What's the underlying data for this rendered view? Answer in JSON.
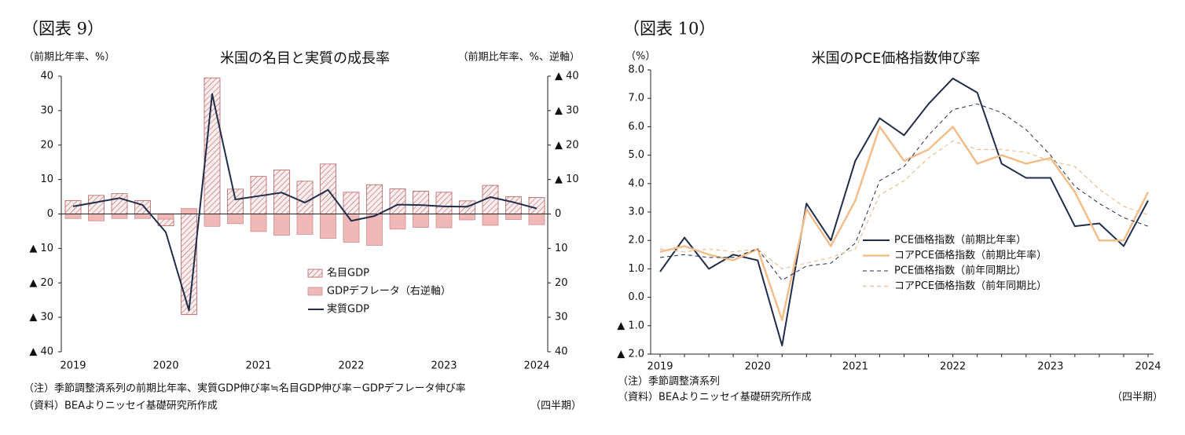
{
  "chart_data": [
    {
      "type": "combo",
      "label": "（図表 9）",
      "title": "米国の名目と実質の成長率",
      "ylabel": "（前期比年率、%）",
      "y2label": "（前期比年率、%、逆軸）",
      "categories": [
        "2019",
        null,
        null,
        null,
        "2020",
        null,
        null,
        null,
        "2021",
        null,
        null,
        null,
        "2022",
        null,
        null,
        null,
        "2023",
        null,
        null,
        null,
        "2024"
      ],
      "series": [
        {
          "name": "名目GDP",
          "type": "bar",
          "pattern": "hatch",
          "color": "#b5605e",
          "values": [
            3.9,
            5.4,
            5.9,
            3.9,
            -3.4,
            -29.2,
            39.5,
            7.2,
            10.9,
            12.8,
            9.5,
            14.5,
            6.3,
            8.5,
            7.3,
            6.6,
            6.3,
            3.8,
            8.3,
            5.0,
            4.8
          ]
        },
        {
          "name": "GDPデフレータ（右逆軸）",
          "type": "bar",
          "axis": "y2",
          "color": "#f0b9b8",
          "values": [
            1.3,
            2.0,
            1.3,
            1.3,
            1.5,
            -1.6,
            3.6,
            2.8,
            5.1,
            6.2,
            5.9,
            7.1,
            8.2,
            9.1,
            4.4,
            3.9,
            4.0,
            1.7,
            3.3,
            1.6,
            3.1
          ]
        },
        {
          "name": "実質GDP",
          "type": "line",
          "color": "#1f2d4a",
          "values": [
            2.2,
            3.4,
            4.6,
            2.6,
            -5.3,
            -28.0,
            34.8,
            4.2,
            5.2,
            6.2,
            3.3,
            7.0,
            -2.0,
            -0.6,
            2.7,
            2.6,
            2.2,
            2.1,
            4.9,
            3.4,
            1.6
          ]
        }
      ],
      "ylim": [
        -40,
        40
      ],
      "yticks": [
        40,
        30,
        20,
        10,
        0,
        {
          "value": -10,
          "label": "▲ 10"
        },
        {
          "value": -20,
          "label": "▲ 20"
        },
        {
          "value": -30,
          "label": "▲ 30"
        },
        {
          "value": -40,
          "label": "▲ 40"
        }
      ],
      "y2lim": [
        40,
        -40
      ],
      "y2ticks": [
        {
          "value": -40,
          "label": "▲ 40"
        },
        {
          "value": -30,
          "label": "▲ 30"
        },
        {
          "value": -20,
          "label": "▲ 20"
        },
        {
          "value": -10,
          "label": "▲ 10"
        },
        0,
        10,
        20,
        30,
        40
      ],
      "grid": false,
      "notes": [
        "（注）季節調整済系列の前期比年率、実質GDP伸び率≒名目GDP伸び率－GDPデフレータ伸び率",
        "（資料）BEAよりニッセイ基礎研究所作成"
      ],
      "xunit": "（四半期）"
    },
    {
      "type": "line",
      "label": "（図表 10）",
      "title": "米国のPCE価格指数伸び率",
      "ylabel": "（%）",
      "categories": [
        "2019",
        null,
        null,
        null,
        "2020",
        null,
        null,
        null,
        "2021",
        null,
        null,
        null,
        "2022",
        null,
        null,
        null,
        "2023",
        null,
        null,
        null,
        "2024"
      ],
      "series": [
        {
          "name": "PCE価格指数（前期比年率）",
          "color": "#1f2d4a",
          "width": 2,
          "values": [
            0.9,
            2.1,
            1.0,
            1.5,
            1.3,
            -1.7,
            3.3,
            2.0,
            4.8,
            6.3,
            5.7,
            6.8,
            7.7,
            7.2,
            4.7,
            4.2,
            4.2,
            2.5,
            2.6,
            1.8,
            3.4
          ]
        },
        {
          "name": "コアPCE価格指数（前期比年率）",
          "color": "#f3bd8a",
          "width": 2.5,
          "values": [
            1.6,
            1.8,
            1.5,
            1.3,
            1.7,
            -0.8,
            3.1,
            1.8,
            3.4,
            6.0,
            4.8,
            5.2,
            6.0,
            4.7,
            5.0,
            4.7,
            4.9,
            3.7,
            2.0,
            2.0,
            3.7
          ]
        },
        {
          "name": "PCE価格指数（前年同期比）",
          "color": "#1f2d4a",
          "width": 1,
          "dash": true,
          "values": [
            1.4,
            1.5,
            1.4,
            1.4,
            1.7,
            0.6,
            1.1,
            1.2,
            1.9,
            4.1,
            4.6,
            5.7,
            6.6,
            6.8,
            6.5,
            5.9,
            5.0,
            3.9,
            3.3,
            2.8,
            2.5
          ]
        },
        {
          "name": "コアPCE価格指数（前年同期比）",
          "color": "#f3bd8a",
          "width": 1.2,
          "dash": true,
          "values": [
            1.7,
            1.6,
            1.7,
            1.6,
            1.7,
            1.0,
            1.2,
            1.4,
            1.7,
            3.6,
            4.1,
            4.9,
            5.5,
            5.2,
            5.2,
            5.1,
            4.8,
            4.6,
            3.8,
            3.2,
            2.9
          ]
        }
      ],
      "ylim": [
        -2,
        8
      ],
      "yticks": [
        {
          "value": 8,
          "label": "8.0"
        },
        {
          "value": 7,
          "label": "7.0"
        },
        {
          "value": 6,
          "label": "6.0"
        },
        {
          "value": 5,
          "label": "5.0"
        },
        {
          "value": 4,
          "label": "4.0"
        },
        {
          "value": 3,
          "label": "3.0"
        },
        {
          "value": 2,
          "label": "2.0"
        },
        {
          "value": 1,
          "label": "1.0"
        },
        {
          "value": 0,
          "label": "0.0"
        },
        {
          "value": -1,
          "label": "▲ 1.0"
        },
        {
          "value": -2,
          "label": "▲ 2.0"
        }
      ],
      "grid": false,
      "notes": [
        "（注）季節調整済系列",
        "（資料）BEAよりニッセイ基礎研究所作成"
      ],
      "xunit": "（四半期）"
    }
  ]
}
